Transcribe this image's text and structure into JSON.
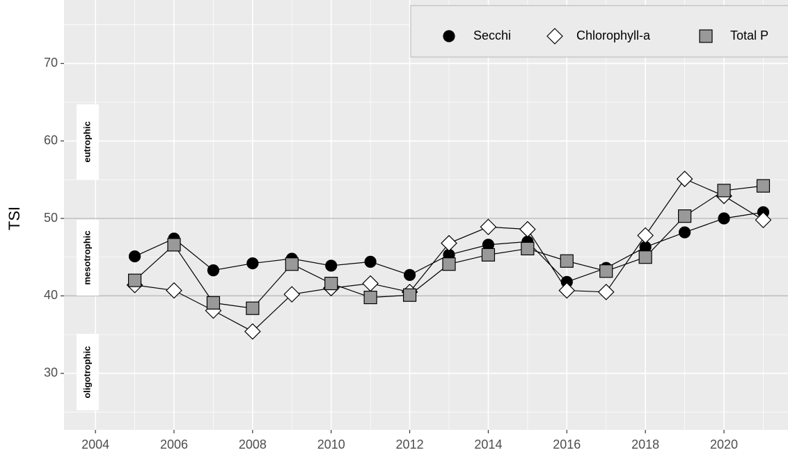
{
  "chart_data": {
    "type": "line",
    "y_label": "TSI",
    "x": [
      2005,
      2006,
      2007,
      2008,
      2009,
      2010,
      2011,
      2012,
      2013,
      2014,
      2015,
      2016,
      2017,
      2018,
      2019,
      2020,
      2021
    ],
    "series": [
      {
        "name": "Secchi",
        "marker": "circle",
        "color": "#000000",
        "values": [
          45.1,
          47.4,
          43.3,
          44.2,
          44.8,
          43.9,
          44.4,
          42.7,
          45.3,
          46.6,
          47.0,
          41.8,
          43.6,
          46.3,
          48.2,
          50.0,
          50.8
        ]
      },
      {
        "name": "Chlorophyll-a",
        "marker": "diamond",
        "color": "#ffffff",
        "values": [
          41.4,
          40.7,
          38.1,
          35.4,
          40.2,
          41.0,
          41.6,
          40.5,
          46.8,
          48.9,
          48.6,
          40.7,
          40.5,
          47.8,
          55.1,
          52.9,
          49.8
        ]
      },
      {
        "name": "Total P",
        "marker": "square",
        "color": "#999999",
        "values": [
          42.0,
          46.6,
          39.1,
          38.4,
          44.1,
          41.6,
          39.8,
          40.1,
          44.1,
          45.3,
          46.1,
          44.5,
          43.2,
          45.0,
          50.3,
          53.6,
          54.2
        ]
      }
    ],
    "hlines": [
      40,
      50
    ],
    "annotations": [
      "eutrophic",
      "mesotrophic",
      "oligotrophic"
    ],
    "xlim": [
      2003.2,
      2021.63
    ],
    "xticks": [
      2004,
      2006,
      2008,
      2010,
      2012,
      2014,
      2016,
      2018,
      2020
    ],
    "ylim": [
      22.7,
      78.2
    ],
    "yticks": [
      30,
      40,
      50,
      60,
      70
    ],
    "grid": true,
    "legend": "top-right"
  }
}
